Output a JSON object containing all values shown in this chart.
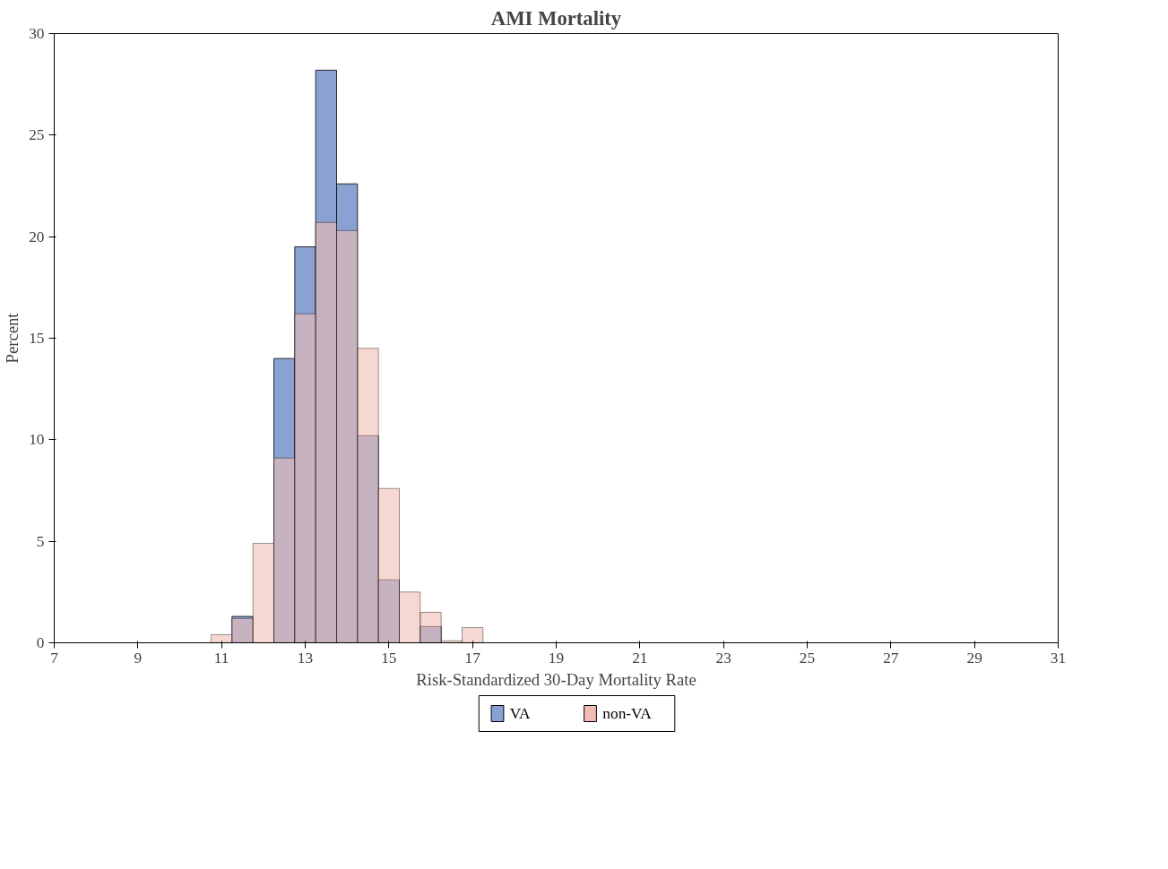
{
  "chart_data": {
    "type": "histogram",
    "title": "AMI Mortality",
    "xlabel": "Risk-Standardized 30-Day Mortality Rate",
    "ylabel": "Percent",
    "bins": [
      10.75,
      11.25,
      11.75,
      12.25,
      12.75,
      13.25,
      13.75,
      14.25,
      14.75,
      15.25,
      15.75,
      16.25,
      16.75,
      17.25
    ],
    "series": [
      {
        "name": "VA",
        "color": "#8aa2d2",
        "values": [
          0,
          1.3,
          0,
          14.0,
          19.5,
          28.2,
          22.6,
          10.2,
          3.1,
          0,
          0.8,
          0,
          0
        ]
      },
      {
        "name": "non-VA",
        "color": "#f0bcb4",
        "values": [
          0.4,
          1.2,
          4.9,
          9.1,
          16.2,
          20.7,
          20.3,
          14.5,
          7.6,
          2.5,
          1.5,
          0.1,
          0.75
        ]
      }
    ],
    "xlim": [
      7,
      31
    ],
    "xticks": [
      7,
      9,
      11,
      13,
      15,
      17,
      19,
      21,
      23,
      25,
      27,
      29,
      31
    ],
    "ylim": [
      0,
      30
    ],
    "yticks": [
      0,
      5,
      10,
      15,
      20,
      25,
      30
    ],
    "grid": false,
    "legend": "bottom"
  }
}
